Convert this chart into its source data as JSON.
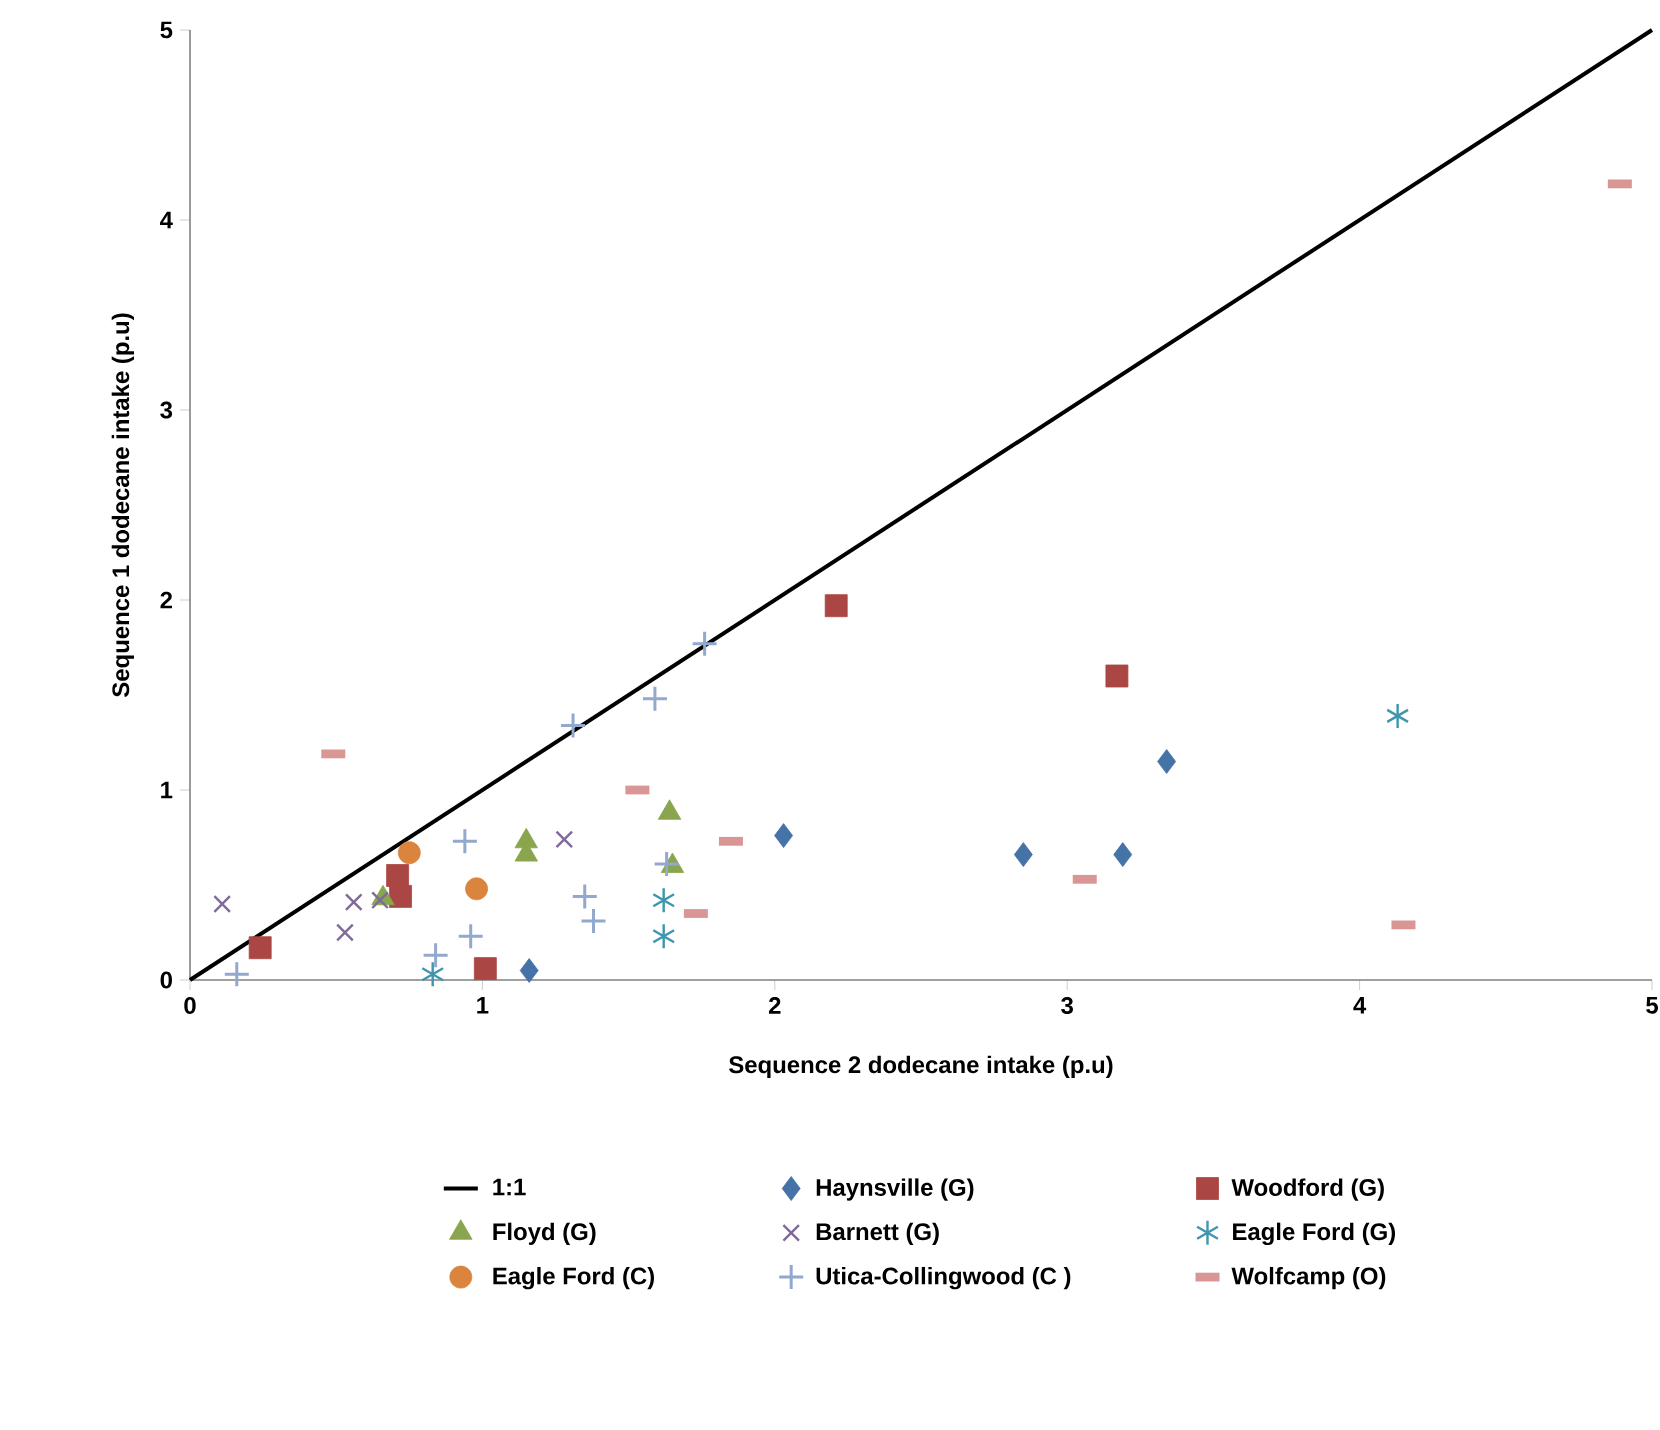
{
  "chart_data": {
    "type": "scatter",
    "xlabel": "Sequence 2 dodecane intake (p.u)",
    "ylabel": "Sequence 1 dodecane intake (p.u)",
    "xlim": [
      0,
      5
    ],
    "ylim": [
      0,
      5
    ],
    "xticks": [
      0,
      1,
      2,
      3,
      4,
      5
    ],
    "yticks": [
      0,
      1,
      2,
      3,
      4,
      5
    ],
    "grid": false,
    "legend": "bottom",
    "series": [
      {
        "name": "1:1",
        "type": "line",
        "color": "#000000",
        "marker": "none",
        "x": [
          0,
          5
        ],
        "values": [
          0,
          5
        ]
      },
      {
        "name": "Haynsville (G)",
        "color": "#4572a7",
        "marker": "diamond",
        "x": [
          1.16,
          2.03,
          2.85,
          3.19,
          3.34
        ],
        "values": [
          0.05,
          0.76,
          0.66,
          0.66,
          1.15
        ]
      },
      {
        "name": "Woodford (G)",
        "color": "#aa4643",
        "marker": "square",
        "x": [
          0.24,
          0.71,
          0.72,
          1.01,
          2.21,
          3.17
        ],
        "values": [
          0.17,
          0.55,
          0.44,
          0.06,
          1.97,
          1.6
        ]
      },
      {
        "name": "Floyd (G)",
        "color": "#89a54e",
        "marker": "triangle",
        "x": [
          0.66,
          1.15,
          1.15,
          1.64,
          1.65
        ],
        "values": [
          0.43,
          0.73,
          0.66,
          0.88,
          0.6
        ]
      },
      {
        "name": "Barnett (G)",
        "color": "#80699b",
        "marker": "cross",
        "x": [
          0.11,
          0.53,
          0.56,
          0.65,
          1.28
        ],
        "values": [
          0.4,
          0.25,
          0.41,
          0.42,
          0.74
        ]
      },
      {
        "name": "Eagle Ford (G)",
        "color": "#3d96ae",
        "x": [
          0.83,
          1.62,
          1.62,
          4.13
        ],
        "values": [
          0.03,
          0.42,
          0.23,
          1.39
        ]
      },
      {
        "name": "Eagle Ford (C)",
        "color": "#db843d",
        "marker": "circle",
        "x": [
          0.75,
          0.98
        ],
        "values": [
          0.67,
          0.48
        ]
      },
      {
        "name": "Utica-Collingwood (C )",
        "color": "#92a8cd",
        "marker": "plus",
        "x": [
          0.16,
          0.84,
          0.96,
          0.94,
          1.31,
          1.59,
          1.76,
          1.35,
          1.38,
          1.63
        ],
        "values": [
          0.03,
          0.13,
          0.23,
          0.73,
          1.34,
          1.48,
          1.77,
          0.44,
          0.31,
          0.61
        ]
      },
      {
        "name": "Wolfcamp (O)",
        "color": "#d99694",
        "x": [
          0.49,
          1.53,
          1.73,
          1.85,
          3.06,
          4.15,
          4.89
        ],
        "values": [
          1.19,
          1.0,
          0.35,
          0.73,
          0.53,
          0.29,
          4.19
        ]
      }
    ]
  }
}
